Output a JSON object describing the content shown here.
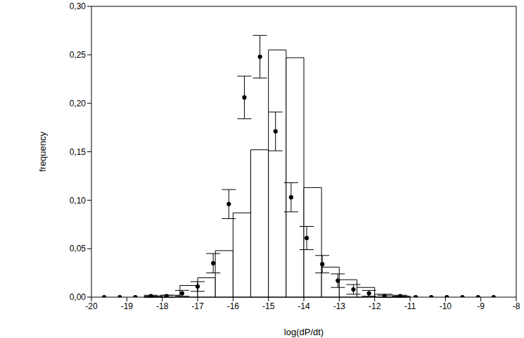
{
  "chart_data": {
    "type": "histogram",
    "x_label": "log(dP/dt)",
    "y_label": "frequency",
    "xlim": [
      -20,
      -8
    ],
    "xticks": [
      -20,
      -19,
      -18,
      -17,
      -16,
      -15,
      -14,
      -13,
      -12,
      -11,
      -10,
      -9,
      -8
    ],
    "ylim": [
      0,
      0.3
    ],
    "yticks": [
      {
        "value": 0,
        "label": "0,00"
      },
      {
        "value": 0.05,
        "label": "0,05"
      },
      {
        "value": 0.1,
        "label": "0,10"
      },
      {
        "value": 0.15,
        "label": "0,15"
      },
      {
        "value": 0.2,
        "label": "0,20"
      },
      {
        "value": 0.25,
        "label": "0,25"
      },
      {
        "value": 0.3,
        "label": "0,30"
      }
    ],
    "bins": [
      -20,
      -19.5,
      -19,
      -18.5,
      -18,
      -17.5,
      -17,
      -16.5,
      -16,
      -15.5,
      -15,
      -14.5,
      -14,
      -13.5,
      -13,
      -12.5,
      -12,
      -11.5,
      -11,
      -10.5,
      -10,
      -9.5,
      -9,
      -8.5,
      -8
    ],
    "counts": [
      0,
      0,
      0,
      0.001,
      0.002,
      0.012,
      0.02,
      0.048,
      0.087,
      0.152,
      0.255,
      0.247,
      0.113,
      0.031,
      0.018,
      0.01,
      0.003,
      0.001,
      0,
      0,
      0,
      0,
      0,
      0
    ],
    "color": "#ffffff",
    "points": {
      "x": [
        -19.64,
        -19.2,
        -18.76,
        -18.32,
        -17.88,
        -17.44,
        -17.0,
        -16.56,
        -16.12,
        -15.68,
        -15.24,
        -14.8,
        -14.36,
        -13.92,
        -13.48,
        -13.04,
        -12.6,
        -12.16,
        -11.72,
        -11.28,
        -10.84,
        -10.4,
        -9.96,
        -9.52,
        -9.08,
        -8.64
      ],
      "values": [
        0,
        0,
        0,
        0.001,
        0.001,
        0.004,
        0.011,
        0.035,
        0.096,
        0.206,
        0.248,
        0.171,
        0.103,
        0.061,
        0.034,
        0.017,
        0.008,
        0.004,
        0.001,
        0.001,
        0,
        0,
        0,
        0,
        0,
        0
      ],
      "errors": [
        0,
        0,
        0,
        0.001,
        0.001,
        0.003,
        0.005,
        0.01,
        0.015,
        0.022,
        0.022,
        0.02,
        0.015,
        0.012,
        0.009,
        0.007,
        0.005,
        0.003,
        0.001,
        0.001,
        0,
        0,
        0,
        0,
        0,
        0
      ],
      "color": "#000000",
      "marker": "circle"
    }
  }
}
